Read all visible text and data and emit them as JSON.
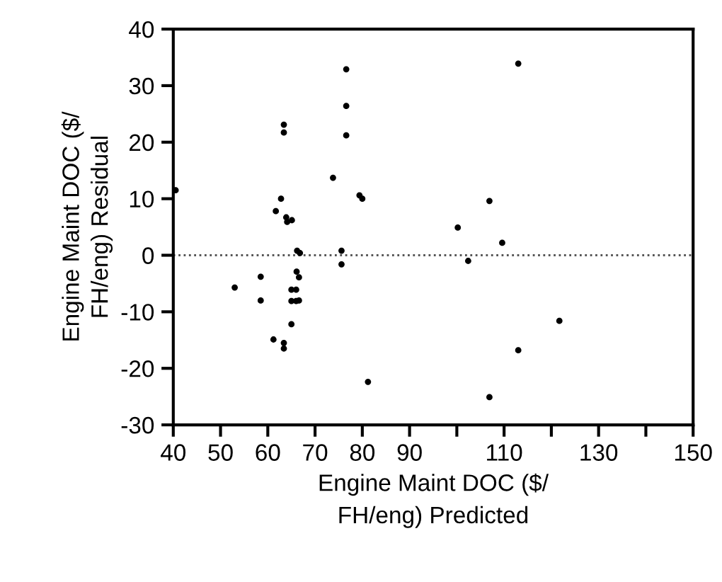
{
  "chart_data": {
    "type": "scatter",
    "xlabel": "Engine Maint DOC ($/\nFH/eng) Predicted",
    "ylabel": "Engine Maint DOC ($/\nFH/eng) Residual",
    "x": [
      40.5,
      53,
      58.5,
      58.5,
      61.2,
      61.7,
      62.8,
      63.4,
      63.4,
      63.4,
      63.4,
      63.9,
      64.1,
      65.1,
      65,
      65,
      65,
      66,
      66,
      66.2,
      66.8,
      66.1,
      66.6,
      66.6,
      73.8,
      75.6,
      75.6,
      76.6,
      76.6,
      76.6,
      79.4,
      80,
      81.2,
      113,
      106.9,
      100.2,
      109.6,
      102.4,
      121.7,
      113,
      106.9
    ],
    "series": [
      {
        "color": "#000000",
        "values": [
          11.5,
          -5.7,
          -3.8,
          -8,
          -14.9,
          7.8,
          10,
          23.1,
          21.7,
          -15.5,
          -16.5,
          6.7,
          5.9,
          6.2,
          -12.2,
          -6.1,
          -8.1,
          -6.1,
          -8.1,
          0.8,
          0.4,
          -2.9,
          -3.9,
          -8,
          13.7,
          0.8,
          -1.6,
          32.9,
          26.4,
          21.2,
          10.6,
          10,
          -22.4,
          33.9,
          9.6,
          4.9,
          2.2,
          -1,
          -11.6,
          -16.8,
          -25.1
        ]
      }
    ],
    "xlim": [
      40,
      150
    ],
    "xticks": [
      40,
      50,
      60,
      70,
      80,
      90,
      {
        "value": 100,
        "label": null
      },
      110,
      {
        "value": 120,
        "label": null
      },
      130,
      {
        "value": 140,
        "label": null
      },
      150
    ],
    "ylim": [
      -30,
      40
    ],
    "yticks": [
      -30,
      -20,
      -10,
      0,
      10,
      20,
      30,
      40
    ],
    "ref_lines": [
      {
        "axis": "y",
        "value": 0,
        "color": "#555555",
        "line_style": "dotted"
      }
    ],
    "marker": "circle",
    "grid": false,
    "legend": false
  }
}
